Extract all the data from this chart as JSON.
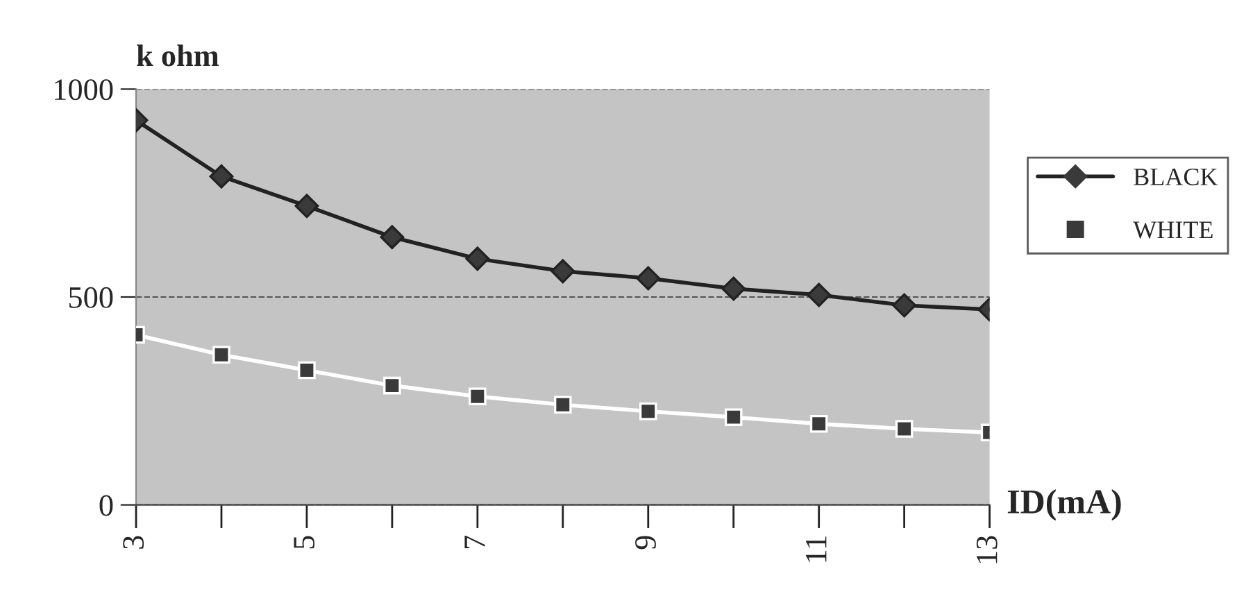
{
  "chart_data": {
    "type": "line",
    "ylabel": "k ohm",
    "xlabel": "ID(mA)",
    "categories": [
      "3",
      null,
      "5",
      null,
      "7",
      null,
      "9",
      null,
      "11",
      null,
      "13"
    ],
    "series": [
      {
        "name": "BLACK",
        "color": "#222222",
        "marker": "diamond",
        "values": [
          925,
          790,
          719,
          644,
          592,
          562,
          545,
          520,
          505,
          480,
          470
        ]
      },
      {
        "name": "WHITE",
        "color": "#ffffff",
        "marker": "square",
        "values": [
          409,
          361,
          324,
          287,
          261,
          241,
          225,
          211,
          195,
          183,
          174
        ]
      }
    ],
    "ylim": [
      0,
      1000
    ],
    "yticks": [
      0,
      500,
      1000
    ],
    "grid": "y",
    "legend": "right"
  }
}
